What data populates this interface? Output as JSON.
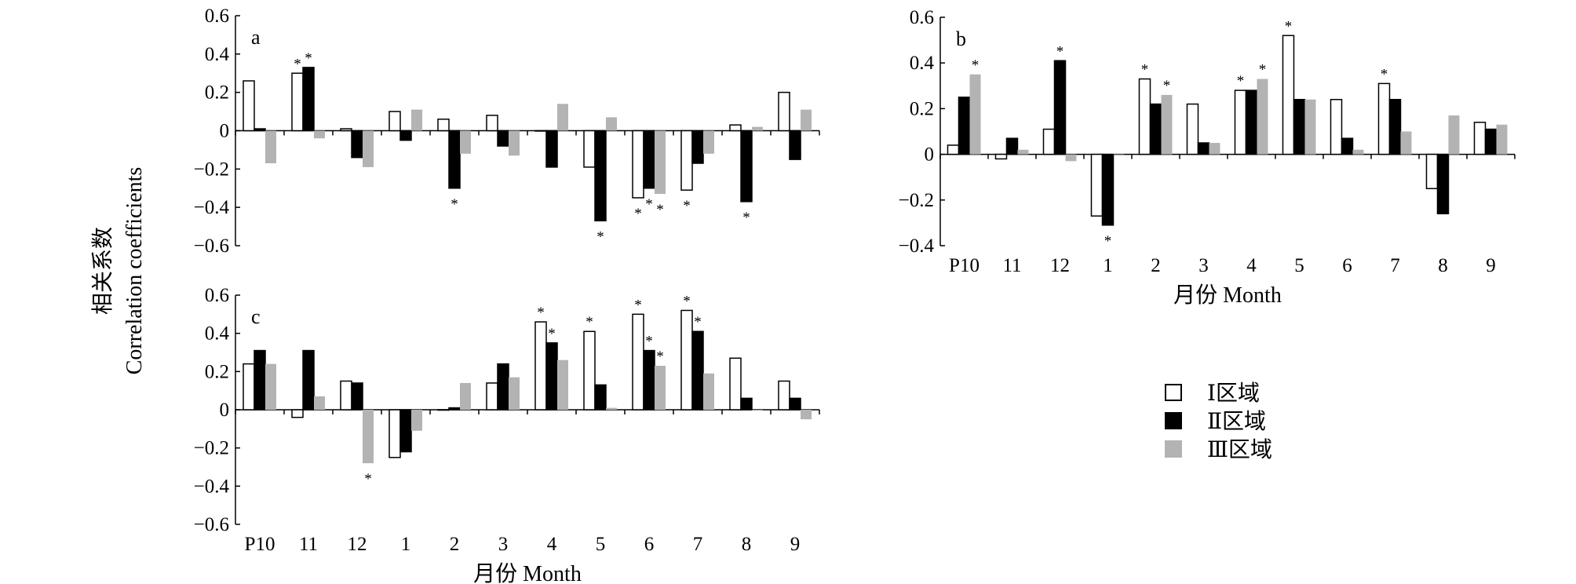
{
  "y_label_cn": "相关系数",
  "y_label_en": "Correlation coefficients",
  "legend": [
    {
      "label": "Ⅰ区域",
      "color": "#ffffff"
    },
    {
      "label": "Ⅱ区域",
      "color": "#000000"
    },
    {
      "label": "Ⅲ区域",
      "color": "#b3b3b3"
    }
  ],
  "chart_data": [
    {
      "type": "bar",
      "panel": "a",
      "categories": [
        "P10",
        "11",
        "12",
        "1",
        "2",
        "3",
        "4",
        "5",
        "6",
        "7",
        "8",
        "9"
      ],
      "ylim": [
        -0.6,
        0.6
      ],
      "yticks": [
        "0.6",
        "0.4",
        "0.2",
        "0",
        "−0.2",
        "−0.4",
        "−0.6"
      ],
      "ytick_values": [
        0.6,
        0.4,
        0.2,
        0,
        -0.2,
        -0.4,
        -0.6
      ],
      "xlabel": "",
      "series": [
        {
          "name": "Ⅰ区域",
          "values": [
            0.26,
            0.3,
            0.01,
            0.1,
            0.06,
            0.08,
            0.0,
            -0.19,
            -0.35,
            -0.31,
            0.03,
            0.2
          ],
          "sig": [
            false,
            true,
            false,
            false,
            false,
            false,
            false,
            false,
            true,
            true,
            false,
            false
          ]
        },
        {
          "name": "Ⅱ区域",
          "values": [
            0.01,
            0.33,
            -0.14,
            -0.05,
            -0.3,
            -0.08,
            -0.19,
            -0.47,
            -0.3,
            -0.17,
            -0.37,
            -0.15
          ],
          "sig": [
            false,
            true,
            false,
            false,
            true,
            false,
            false,
            true,
            true,
            false,
            true,
            false
          ]
        },
        {
          "name": "Ⅲ区域",
          "values": [
            -0.17,
            -0.04,
            -0.19,
            0.11,
            -0.12,
            -0.13,
            0.14,
            0.07,
            -0.33,
            -0.12,
            0.02,
            0.11
          ],
          "sig": [
            false,
            false,
            false,
            false,
            false,
            false,
            false,
            false,
            true,
            false,
            false,
            false
          ]
        }
      ]
    },
    {
      "type": "bar",
      "panel": "b",
      "categories": [
        "P10",
        "11",
        "12",
        "1",
        "2",
        "3",
        "4",
        "5",
        "6",
        "7",
        "8",
        "9"
      ],
      "ylim": [
        -0.4,
        0.6
      ],
      "yticks": [
        "0.6",
        "0.4",
        "0.2",
        "0",
        "−0.2",
        "−0.4"
      ],
      "ytick_values": [
        0.6,
        0.4,
        0.2,
        0,
        -0.2,
        -0.4
      ],
      "xlabel": "月份 Month",
      "series": [
        {
          "name": "Ⅰ区域",
          "values": [
            0.04,
            -0.02,
            0.11,
            -0.27,
            0.33,
            0.22,
            0.28,
            0.52,
            0.24,
            0.31,
            -0.15,
            0.14
          ],
          "sig": [
            false,
            false,
            false,
            false,
            true,
            false,
            true,
            true,
            false,
            true,
            false,
            false
          ]
        },
        {
          "name": "Ⅱ区域",
          "values": [
            0.25,
            0.07,
            0.41,
            -0.31,
            0.22,
            0.05,
            0.28,
            0.24,
            0.07,
            0.24,
            -0.26,
            0.11
          ],
          "sig": [
            false,
            false,
            true,
            true,
            false,
            false,
            false,
            false,
            false,
            false,
            false,
            false
          ]
        },
        {
          "name": "Ⅲ区域",
          "values": [
            0.35,
            0.02,
            -0.03,
            0.0,
            0.26,
            0.05,
            0.33,
            0.24,
            0.02,
            0.1,
            0.17,
            0.13
          ],
          "sig": [
            true,
            false,
            false,
            false,
            true,
            false,
            true,
            false,
            false,
            false,
            false,
            false
          ]
        }
      ]
    },
    {
      "type": "bar",
      "panel": "c",
      "categories": [
        "P10",
        "11",
        "12",
        "1",
        "2",
        "3",
        "4",
        "5",
        "6",
        "7",
        "8",
        "9"
      ],
      "ylim": [
        -0.6,
        0.6
      ],
      "yticks": [
        "0.6",
        "0.4",
        "0.2",
        "0",
        "−0.2",
        "−0.4",
        "−0.6"
      ],
      "ytick_values": [
        0.6,
        0.4,
        0.2,
        0,
        -0.2,
        -0.4,
        -0.6
      ],
      "xlabel": "月份 Month",
      "series": [
        {
          "name": "Ⅰ区域",
          "values": [
            0.24,
            -0.04,
            0.15,
            -0.25,
            0.0,
            0.14,
            0.46,
            0.41,
            0.5,
            0.52,
            0.27,
            0.15
          ],
          "sig": [
            false,
            false,
            false,
            false,
            false,
            false,
            true,
            true,
            true,
            true,
            false,
            false
          ]
        },
        {
          "name": "Ⅱ区域",
          "values": [
            0.31,
            0.31,
            0.14,
            -0.22,
            0.01,
            0.24,
            0.35,
            0.13,
            0.31,
            0.41,
            0.06,
            0.06
          ],
          "sig": [
            false,
            false,
            false,
            false,
            false,
            false,
            true,
            false,
            true,
            true,
            false,
            false
          ]
        },
        {
          "name": "Ⅲ区域",
          "values": [
            0.24,
            0.07,
            -0.28,
            -0.11,
            0.14,
            0.17,
            0.26,
            0.01,
            0.23,
            0.19,
            0.0,
            -0.05
          ],
          "sig": [
            false,
            false,
            true,
            false,
            false,
            false,
            false,
            false,
            true,
            false,
            false,
            false
          ]
        }
      ]
    }
  ]
}
